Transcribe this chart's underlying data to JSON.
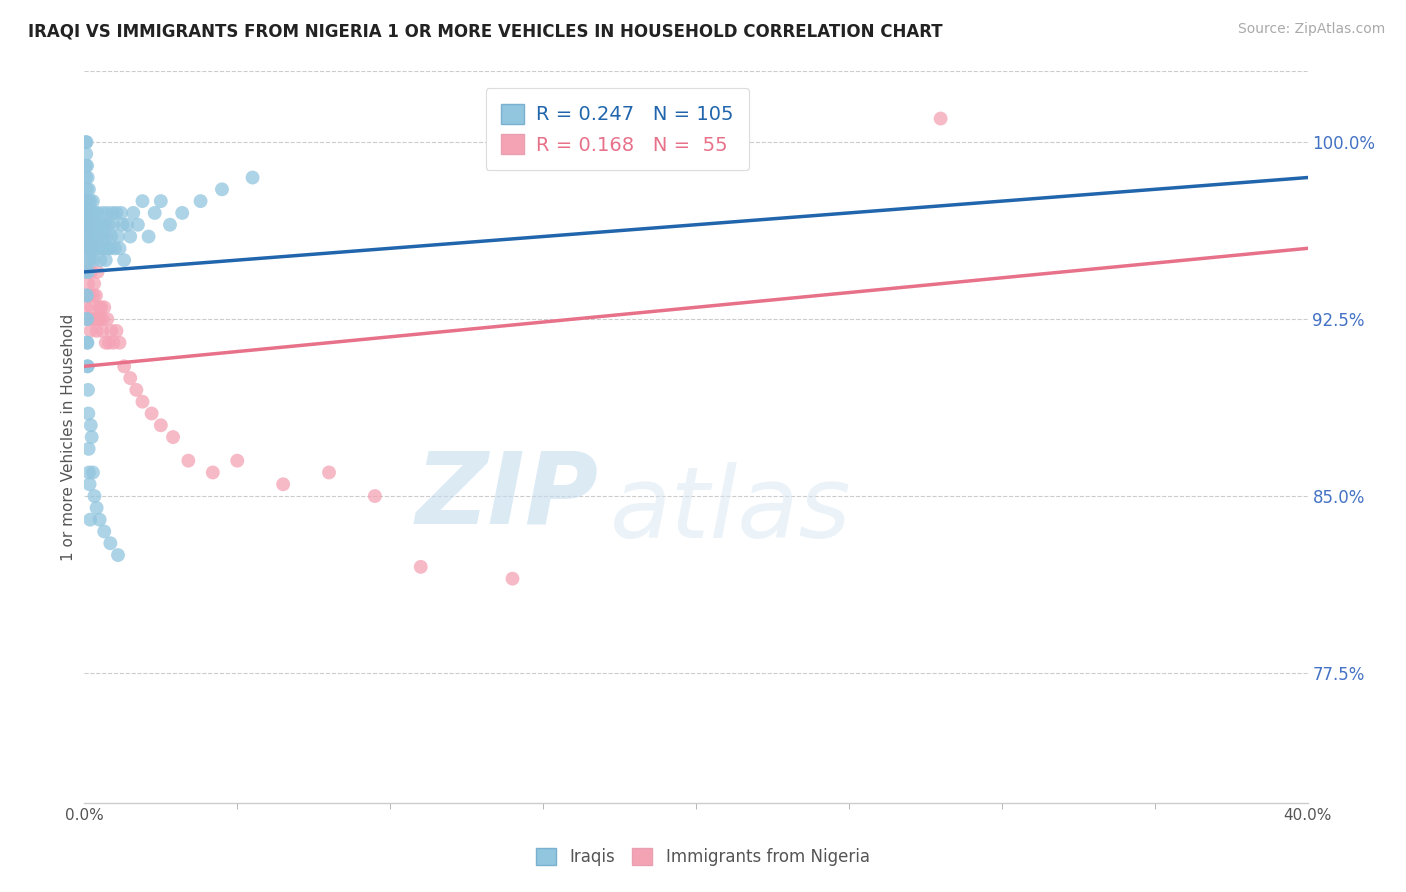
{
  "title": "IRAQI VS IMMIGRANTS FROM NIGERIA 1 OR MORE VEHICLES IN HOUSEHOLD CORRELATION CHART",
  "source": "Source: ZipAtlas.com",
  "ylabel": "1 or more Vehicles in Household",
  "ytick_positions": [
    77.5,
    85.0,
    92.5,
    100.0
  ],
  "ytick_labels": [
    "77.5%",
    "85.0%",
    "92.5%",
    "100.0%"
  ],
  "xmin": 0.0,
  "xmax": 40.0,
  "ymin": 72.0,
  "ymax": 103.0,
  "legend_R1": "0.247",
  "legend_N1": "105",
  "legend_R2": "0.168",
  "legend_N2": " 55",
  "color_iraqi": "#92c5de",
  "color_nigeria": "#f4a3b5",
  "line_color_iraqi": "#2166ac",
  "line_color_nigeria": "#e8718a",
  "watermark_zip": "ZIP",
  "watermark_atlas": "atlas",
  "iraqi_x": [
    0.05,
    0.05,
    0.05,
    0.05,
    0.06,
    0.06,
    0.07,
    0.07,
    0.08,
    0.08,
    0.09,
    0.09,
    0.1,
    0.1,
    0.11,
    0.11,
    0.12,
    0.12,
    0.13,
    0.14,
    0.15,
    0.15,
    0.16,
    0.17,
    0.18,
    0.19,
    0.2,
    0.2,
    0.22,
    0.23,
    0.25,
    0.25,
    0.27,
    0.28,
    0.3,
    0.32,
    0.33,
    0.35,
    0.37,
    0.38,
    0.4,
    0.42,
    0.45,
    0.47,
    0.5,
    0.52,
    0.55,
    0.58,
    0.6,
    0.63,
    0.65,
    0.68,
    0.7,
    0.73,
    0.75,
    0.78,
    0.8,
    0.85,
    0.88,
    0.92,
    0.95,
    1.0,
    1.05,
    1.1,
    1.15,
    1.2,
    1.25,
    1.3,
    1.4,
    1.5,
    1.6,
    1.75,
    1.9,
    2.1,
    2.3,
    2.5,
    2.8,
    3.2,
    3.8,
    4.5,
    0.08,
    0.09,
    0.1,
    0.11,
    0.12,
    0.13,
    0.14,
    0.15,
    0.17,
    0.19,
    0.21,
    0.24,
    0.28,
    0.33,
    0.4,
    0.5,
    0.65,
    0.85,
    1.1,
    5.5,
    0.06,
    0.07,
    0.08,
    0.09,
    0.1
  ],
  "iraqi_y": [
    97.5,
    98.5,
    99.0,
    100.0,
    96.5,
    99.5,
    97.0,
    100.0,
    95.5,
    98.0,
    96.0,
    99.0,
    95.0,
    97.5,
    96.5,
    98.5,
    94.5,
    97.0,
    96.0,
    97.5,
    95.5,
    98.0,
    96.5,
    97.0,
    95.0,
    96.5,
    95.5,
    97.5,
    96.0,
    97.0,
    95.5,
    97.0,
    96.0,
    97.5,
    95.0,
    96.5,
    95.5,
    97.0,
    96.5,
    95.5,
    96.0,
    97.0,
    95.5,
    96.0,
    96.5,
    95.0,
    96.5,
    95.5,
    97.0,
    96.0,
    95.5,
    96.5,
    95.0,
    96.0,
    97.0,
    95.5,
    96.5,
    95.5,
    96.0,
    97.0,
    96.5,
    95.5,
    97.0,
    96.0,
    95.5,
    97.0,
    96.5,
    95.0,
    96.5,
    96.0,
    97.0,
    96.5,
    97.5,
    96.0,
    97.0,
    97.5,
    96.5,
    97.0,
    97.5,
    98.0,
    93.5,
    92.5,
    91.5,
    90.5,
    89.5,
    88.5,
    87.0,
    86.0,
    85.5,
    84.0,
    88.0,
    87.5,
    86.0,
    85.0,
    84.5,
    84.0,
    83.5,
    83.0,
    82.5,
    98.5,
    94.5,
    93.5,
    92.5,
    91.5,
    90.5
  ],
  "nigeria_x": [
    0.05,
    0.05,
    0.06,
    0.07,
    0.08,
    0.09,
    0.1,
    0.1,
    0.12,
    0.13,
    0.15,
    0.15,
    0.17,
    0.18,
    0.2,
    0.22,
    0.23,
    0.25,
    0.27,
    0.3,
    0.32,
    0.35,
    0.38,
    0.4,
    0.43,
    0.45,
    0.48,
    0.5,
    0.55,
    0.58,
    0.6,
    0.65,
    0.7,
    0.75,
    0.8,
    0.88,
    0.95,
    1.05,
    1.15,
    1.3,
    1.5,
    1.7,
    1.9,
    2.2,
    2.5,
    2.9,
    3.4,
    4.2,
    5.0,
    6.5,
    8.0,
    9.5,
    11.0,
    14.0,
    28.0
  ],
  "nigeria_y": [
    93.0,
    97.5,
    95.5,
    97.0,
    94.5,
    96.5,
    93.5,
    96.0,
    94.0,
    95.5,
    92.5,
    96.5,
    93.5,
    95.0,
    92.0,
    94.5,
    93.0,
    95.5,
    92.5,
    93.5,
    94.0,
    92.5,
    93.5,
    92.0,
    94.5,
    92.5,
    93.0,
    92.5,
    93.0,
    92.0,
    92.5,
    93.0,
    91.5,
    92.5,
    91.5,
    92.0,
    91.5,
    92.0,
    91.5,
    90.5,
    90.0,
    89.5,
    89.0,
    88.5,
    88.0,
    87.5,
    86.5,
    86.0,
    86.5,
    85.5,
    86.0,
    85.0,
    82.0,
    81.5,
    101.0
  ],
  "iraqi_trendline": [
    0.0,
    40.0,
    94.5,
    98.5
  ],
  "nigeria_trendline": [
    0.0,
    40.0,
    90.5,
    95.5
  ]
}
